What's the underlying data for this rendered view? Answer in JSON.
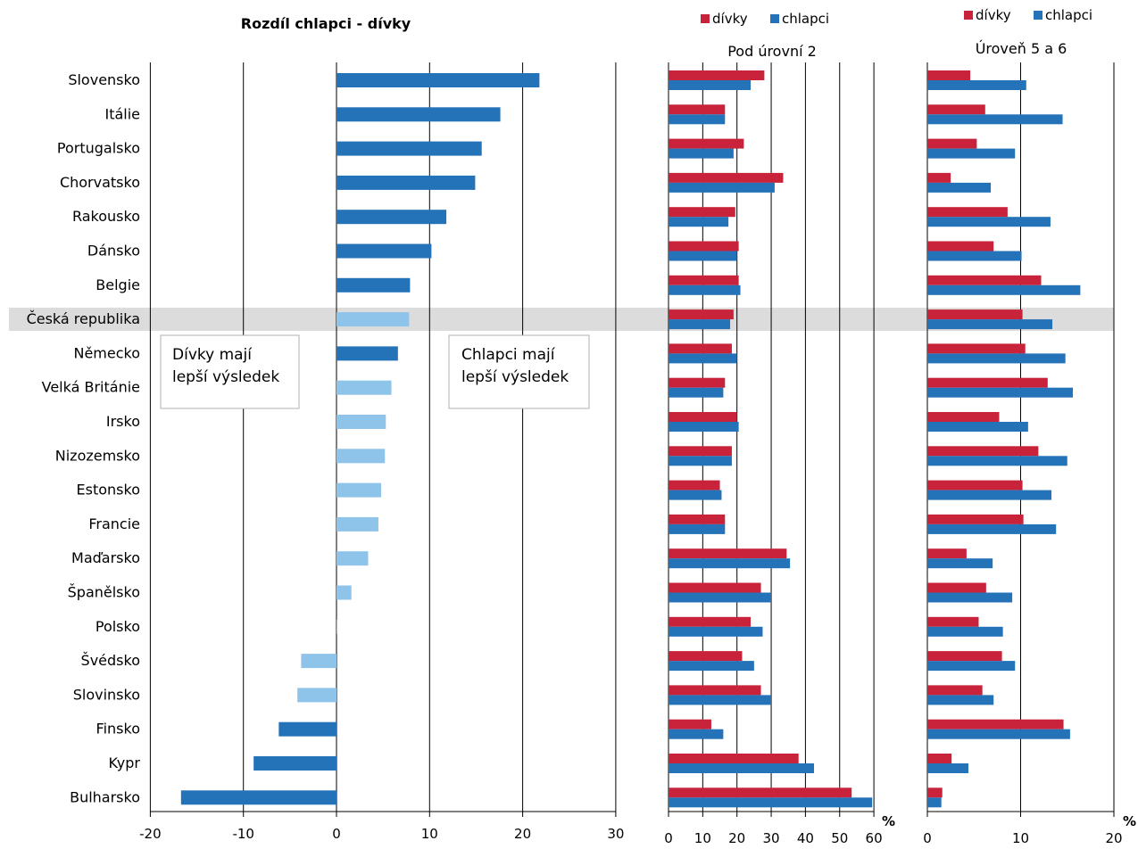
{
  "chart_data": [
    {
      "type": "bar",
      "title": "Rozdíl chlapci - dívky",
      "orientation": "horizontal",
      "categories": [
        "Slovensko",
        "Itálie",
        "Portugalsko",
        "Chorvatsko",
        "Rakousko",
        "Dánsko",
        "Belgie",
        "Česká republika",
        "Německo",
        "Velká Británie",
        "Irsko",
        "Nizozemsko",
        "Estonsko",
        "Francie",
        "Maďarsko",
        "Španělsko",
        "Polsko",
        "Švédsko",
        "Slovinsko",
        "Finsko",
        "Kypr",
        "Bulharsko"
      ],
      "values": [
        21.8,
        17.6,
        15.6,
        14.9,
        11.8,
        10.2,
        7.9,
        7.8,
        6.6,
        5.9,
        5.3,
        5.2,
        4.8,
        4.5,
        3.4,
        1.6,
        0.1,
        -3.8,
        -4.2,
        -6.2,
        -8.9,
        -16.7
      ],
      "significant": [
        true,
        true,
        true,
        true,
        true,
        true,
        true,
        false,
        true,
        false,
        false,
        false,
        false,
        false,
        false,
        false,
        false,
        false,
        false,
        true,
        true,
        true
      ],
      "colors": {
        "significant": "#2472b8",
        "not_significant": "#8ec3ea"
      },
      "xlim": [
        -20,
        30
      ],
      "xticks": [
        -20,
        -10,
        0,
        10,
        20,
        30
      ],
      "annotations": {
        "left": "Dívky mají lepší výsledek",
        "right": "Chlapci mají lepší výsledek"
      },
      "highlight": "Česká republika",
      "grid": true
    },
    {
      "type": "bar",
      "title": "Pod úrovní 2",
      "orientation": "horizontal",
      "unit": "%",
      "series": [
        {
          "name": "dívky",
          "color": "#c8233a",
          "values": [
            28,
            16.5,
            22,
            33.5,
            19.5,
            20.5,
            20.5,
            19,
            18.5,
            16.5,
            20,
            18.5,
            15,
            16.5,
            34.5,
            27,
            24,
            21.5,
            27,
            12.5,
            38,
            53.5
          ]
        },
        {
          "name": "chlapci",
          "color": "#2472b8",
          "values": [
            24,
            16.5,
            19,
            31,
            17.5,
            20,
            21,
            18,
            20,
            16,
            20.5,
            18.5,
            15.5,
            16.5,
            35.5,
            30,
            27.5,
            25,
            30,
            16,
            42.5,
            59.5
          ]
        }
      ],
      "xlim": [
        0,
        60
      ],
      "xticks": [
        0,
        10,
        20,
        30,
        40,
        50,
        60
      ],
      "legend": "top",
      "grid": true
    },
    {
      "type": "bar",
      "title": "Úroveň 5 a 6",
      "orientation": "horizontal",
      "unit": "%",
      "series": [
        {
          "name": "dívky",
          "color": "#c8233a",
          "values": [
            4.6,
            6.2,
            5.3,
            2.5,
            8.6,
            7.1,
            12.2,
            10.2,
            10.5,
            12.9,
            7.7,
            11.9,
            10.2,
            10.3,
            4.2,
            6.3,
            5.5,
            8,
            5.9,
            14.6,
            2.6,
            1.6
          ]
        },
        {
          "name": "chlapci",
          "color": "#2472b8",
          "values": [
            10.6,
            14.5,
            9.4,
            6.8,
            13.2,
            10.1,
            16.4,
            13.4,
            14.8,
            15.6,
            10.8,
            15,
            13.3,
            13.8,
            7,
            9.1,
            8.1,
            9.4,
            7.1,
            15.3,
            4.4,
            1.5
          ]
        }
      ],
      "xlim": [
        0,
        20
      ],
      "xticks": [
        0,
        10,
        20
      ],
      "legend": "top",
      "grid": true
    }
  ]
}
